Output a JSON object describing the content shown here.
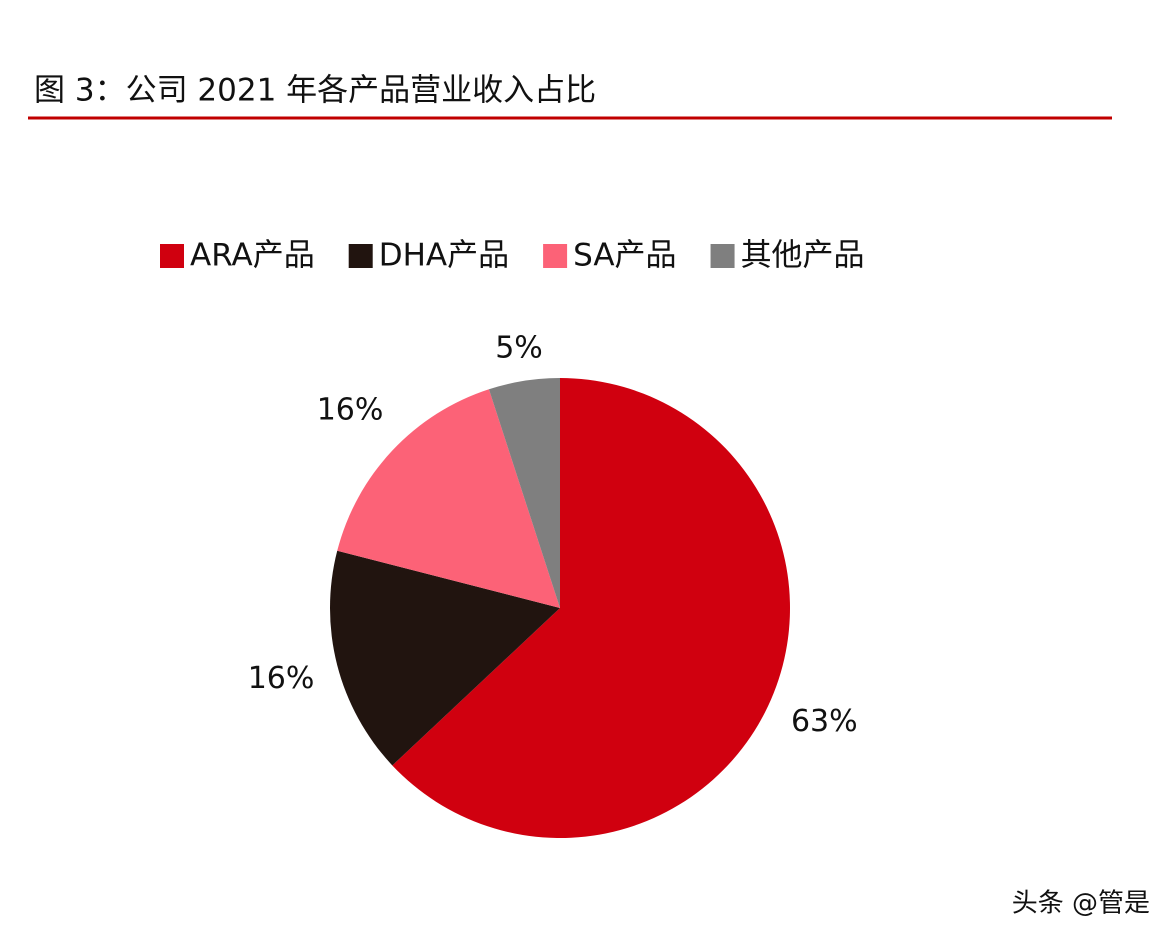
{
  "chart_data": {
    "type": "pie",
    "title": "图 3：公司 2021 年各产品营业收入占比",
    "categories": [
      "ARA产品",
      "DHA产品",
      "SA产品",
      "其他产品"
    ],
    "values": [
      63,
      16,
      16,
      5
    ],
    "value_labels": [
      "63%",
      "16%",
      "16%",
      "5%"
    ],
    "colors": [
      "#d0000f",
      "#21140f",
      "#fc6277",
      "#7f7f7f"
    ],
    "legend": "top"
  },
  "watermark": "头条 @管是"
}
